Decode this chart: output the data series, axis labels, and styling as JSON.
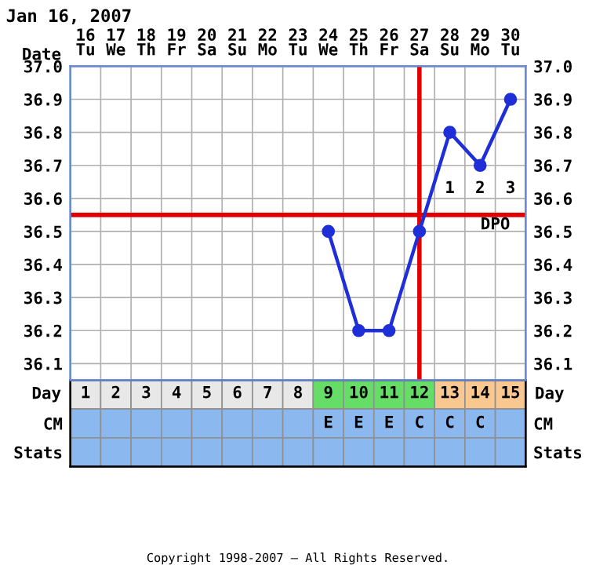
{
  "chart_data": [
    {
      "type": "line",
      "title": "Jan 16, 2007",
      "xlabel": "Date",
      "categories": [
        "16\nTu",
        "17\nWe",
        "18\nTh",
        "19\nFr",
        "20\nSa",
        "21\nSu",
        "22\nMo",
        "23\nTu",
        "24\nWe",
        "25\nTh",
        "26\nFr",
        "27\nSa",
        "28\nSu",
        "29\nMo",
        "30\nTu"
      ],
      "series": [
        {
          "color": "#1f2fd8",
          "values": [
            null,
            null,
            null,
            null,
            null,
            null,
            null,
            null,
            36.5,
            36.2,
            36.2,
            36.5,
            36.8,
            36.7,
            36.9
          ]
        }
      ],
      "ylim": [
        36.05,
        37.0
      ],
      "yticks": [
        36.1,
        36.2,
        36.3,
        36.4,
        36.5,
        36.6,
        36.7,
        36.8,
        36.9,
        {
          "value": 37,
          "label": "37.0"
        }
      ],
      "y2lim": [
        36.05,
        37.0
      ],
      "y2ticks": [
        36.1,
        36.2,
        36.3,
        36.4,
        36.5,
        36.6,
        36.7,
        36.8,
        36.9,
        {
          "value": 37,
          "label": "37.0"
        }
      ],
      "x2lim": [
        0.5,
        15.5
      ],
      "x2ticks": [
        1,
        2,
        3,
        4,
        5,
        6,
        7,
        8,
        9,
        10,
        11,
        12,
        13,
        14,
        15
      ],
      "x2label": "Day",
      "grid": true,
      "marker": "circle",
      "line_style": "solid",
      "legend": false,
      "ref_lines": [
        {
          "axis": "y",
          "value": 36.55,
          "color": "#e00000"
        },
        {
          "axis": "x",
          "value": "27\nSa",
          "color": "#e00000"
        }
      ],
      "annotations": [
        "1",
        "2",
        "3",
        "DPO"
      ]
    },
    {
      "type": "other",
      "categories": [
        null,
        null,
        null,
        null,
        null,
        null,
        null,
        null,
        null,
        null,
        null,
        null,
        null,
        null,
        null
      ],
      "y_categories": [
        null,
        "CM",
        "Stats"
      ],
      "y2_categories": [
        null,
        "CM",
        "Stats"
      ],
      "cell_labels": [
        [
          null,
          null,
          null,
          null,
          null,
          null,
          null,
          null,
          null,
          null,
          null,
          null,
          null,
          null,
          null
        ],
        [
          null,
          null,
          null,
          null,
          null,
          null,
          null,
          null,
          "E",
          "E",
          "E",
          "C",
          "C",
          "C",
          null
        ],
        [
          null,
          null,
          null,
          null,
          null,
          null,
          null,
          null,
          null,
          null,
          null,
          null,
          null,
          null,
          null
        ]
      ],
      "colors": [
        [
          "#e8e8e8",
          "#e8e8e8",
          "#e8e8e8",
          "#e8e8e8",
          "#e8e8e8",
          "#e8e8e8",
          "#e8e8e8",
          "#e8e8e8",
          "#66dd66",
          "#66dd66",
          "#66dd66",
          "#66dd66",
          "#f8c890",
          "#f8c890",
          "#f8c890"
        ],
        [
          "#8cb8f0",
          "#8cb8f0",
          "#8cb8f0",
          "#8cb8f0",
          "#8cb8f0",
          "#8cb8f0",
          "#8cb8f0",
          "#8cb8f0",
          "#8cb8f0",
          "#8cb8f0",
          "#8cb8f0",
          "#8cb8f0",
          "#8cb8f0",
          "#8cb8f0",
          "#8cb8f0"
        ],
        [
          "#8cb8f0",
          "#8cb8f0",
          "#8cb8f0",
          "#8cb8f0",
          "#8cb8f0",
          "#8cb8f0",
          "#8cb8f0",
          "#8cb8f0",
          "#8cb8f0",
          "#8cb8f0",
          "#8cb8f0",
          "#8cb8f0",
          "#8cb8f0",
          "#8cb8f0",
          "#8cb8f0"
        ]
      ],
      "annotations": [
        "Copyright 1998-2007 — All Rights Reserved."
      ]
    }
  ]
}
